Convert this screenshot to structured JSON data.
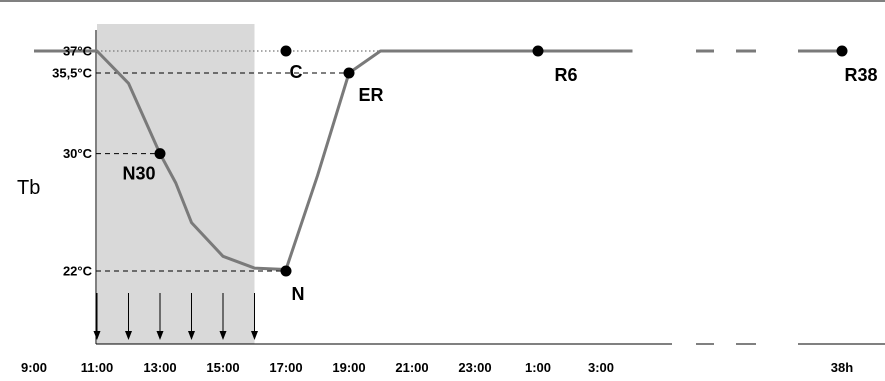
{
  "chart_data": {
    "type": "line",
    "ylabel": "Tb",
    "x_tick_labels": [
      "9:00",
      "11:00",
      "13:00",
      "15:00",
      "17:00",
      "19:00",
      "21:00",
      "23:00",
      "1:00",
      "3:00",
      "38h"
    ],
    "y_tick_labels": [
      "37°C",
      "35,5°C",
      "30°C",
      "22°C"
    ],
    "y_tick_values": [
      37,
      35.5,
      30,
      22
    ],
    "shaded_interval": [
      "11:00",
      "16:00"
    ],
    "arrow_times": [
      "11:00",
      "12:00",
      "13:00",
      "14:00",
      "15:00",
      "16:00"
    ],
    "series": [
      {
        "x": [
          "9:00",
          "11:00",
          "12:00",
          "13:00",
          "13:30",
          "14:00",
          "15:00",
          "16:00",
          "17:00",
          "18:00",
          "19:00",
          "20:00",
          "21:00",
          "1:00",
          "4:00"
        ],
        "y": [
          37,
          37,
          34.8,
          30,
          28,
          25.3,
          23,
          22.2,
          22.1,
          28.5,
          35.5,
          37,
          37,
          37,
          37
        ]
      }
    ],
    "points": [
      {
        "label": "C",
        "x": "17:00",
        "y": 37
      },
      {
        "label": "ER",
        "x": "19:00",
        "y": 35.5
      },
      {
        "label": "N30",
        "x": "13:00",
        "y": 30
      },
      {
        "label": "N",
        "x": "17:00",
        "y": 22
      },
      {
        "label": "R6",
        "x": "1:00",
        "y": 37
      },
      {
        "label": "R38",
        "x": "38h",
        "y": 37
      }
    ],
    "colors": {
      "line": "#7a7a7a",
      "shade": "#d9d9d9",
      "points": "#000000"
    }
  }
}
